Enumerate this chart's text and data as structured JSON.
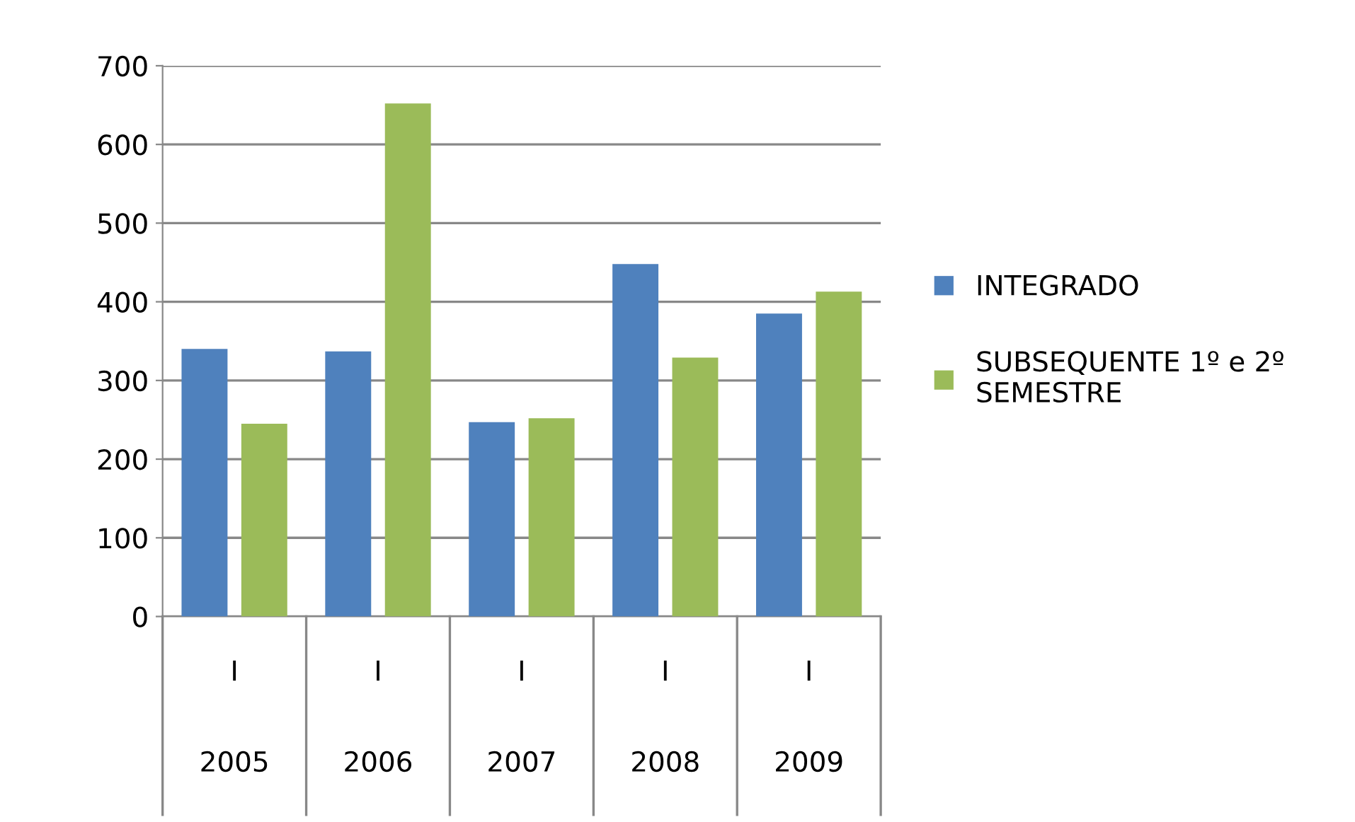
{
  "chart_data": {
    "type": "bar",
    "categories": [
      "I\n\n2005",
      "I\n\n2006",
      "I\n\n2007",
      "I\n\n2008",
      "I\n\n2009"
    ],
    "series": [
      {
        "name": "INTEGRADO",
        "color": "#4f81bd",
        "values": [
          340,
          337,
          247,
          448,
          385
        ]
      },
      {
        "name": "SUBSEQUENTE 1º e 2º\nSEMESTRE",
        "color": "#9bbb59",
        "values": [
          245,
          652,
          252,
          329,
          413
        ]
      }
    ],
    "ylim": [
      0,
      700
    ],
    "yticks": [
      0,
      100,
      200,
      300,
      400,
      500,
      600,
      700
    ],
    "grid": "y",
    "legend": "right"
  }
}
